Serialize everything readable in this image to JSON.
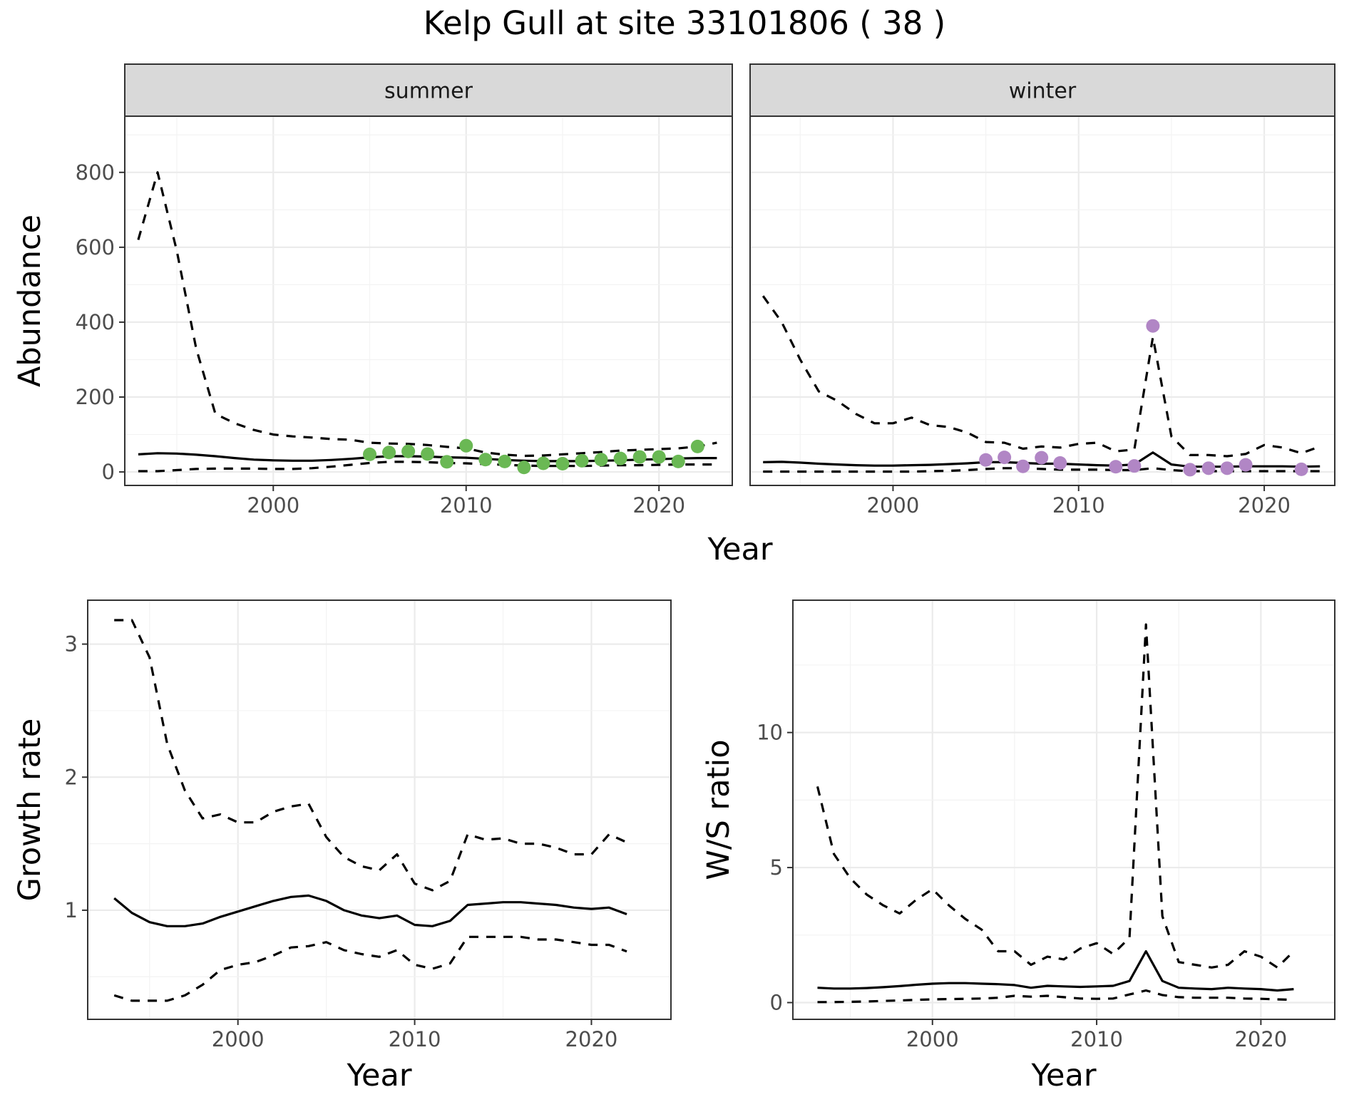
{
  "title": "Kelp Gull at site 33101806 ( 38 )",
  "chart_data": [
    {
      "type": "line",
      "panel": "summer",
      "strip": "summer",
      "ylabel": "Abundance",
      "xlabel": "",
      "xlim": [
        1992.3,
        2023.8
      ],
      "ylim": [
        -36,
        950
      ],
      "x_ticks": [
        "2000",
        "2010",
        "2020"
      ],
      "y_ticks": [
        "0",
        "200",
        "400",
        "600",
        "800"
      ],
      "x": [
        1993,
        1994,
        1995,
        1996,
        1997,
        1998,
        1999,
        2000,
        2001,
        2002,
        2003,
        2004,
        2005,
        2006,
        2007,
        2008,
        2009,
        2010,
        2011,
        2012,
        2013,
        2014,
        2015,
        2016,
        2017,
        2018,
        2019,
        2020,
        2021,
        2022,
        2023
      ],
      "series": [
        {
          "role": "estimate",
          "values": [
            47,
            50,
            49,
            46,
            42,
            37,
            33,
            31,
            30,
            30,
            32,
            35,
            39,
            42,
            42,
            41,
            39,
            38,
            35,
            32,
            30,
            29,
            29,
            29,
            30,
            31,
            33,
            34,
            36,
            37,
            37
          ]
        },
        {
          "role": "upper",
          "values": [
            620,
            800,
            590,
            330,
            155,
            130,
            112,
            100,
            95,
            92,
            88,
            86,
            78,
            76,
            75,
            72,
            67,
            63,
            52,
            46,
            43,
            44,
            47,
            50,
            53,
            57,
            59,
            61,
            63,
            68,
            78
          ]
        },
        {
          "role": "lower",
          "values": [
            2,
            2,
            5,
            8,
            9,
            9,
            9,
            8,
            8,
            10,
            14,
            19,
            24,
            27,
            27,
            26,
            24,
            23,
            21,
            19,
            17,
            16,
            16,
            16,
            17,
            18,
            18,
            19,
            20,
            20,
            20
          ]
        }
      ],
      "points": {
        "color": "#6ab854",
        "x": [
          2005,
          2006,
          2007,
          2008,
          2009,
          2010,
          2011,
          2012,
          2013,
          2014,
          2015,
          2016,
          2017,
          2018,
          2019,
          2020,
          2021,
          2022
        ],
        "y": [
          47,
          52,
          55,
          48,
          27,
          70,
          33,
          28,
          12,
          23,
          22,
          30,
          33,
          36,
          40,
          40,
          28,
          68
        ]
      }
    },
    {
      "type": "line",
      "panel": "winter",
      "strip": "winter",
      "ylabel": "",
      "xlabel": "",
      "xlim": [
        1992.3,
        2023.8
      ],
      "ylim": [
        -36,
        950
      ],
      "x_ticks": [
        "2000",
        "2010",
        "2020"
      ],
      "y_ticks": [],
      "x": [
        1993,
        1994,
        1995,
        1996,
        1997,
        1998,
        1999,
        2000,
        2001,
        2002,
        2003,
        2004,
        2005,
        2006,
        2007,
        2008,
        2009,
        2010,
        2011,
        2012,
        2013,
        2014,
        2015,
        2016,
        2017,
        2018,
        2019,
        2020,
        2021,
        2022,
        2023
      ],
      "series": [
        {
          "role": "estimate",
          "values": [
            26,
            27,
            25,
            22,
            20,
            18,
            17,
            17,
            18,
            19,
            21,
            23,
            26,
            26,
            24,
            22,
            22,
            20,
            18,
            17,
            20,
            52,
            20,
            14,
            14,
            14,
            15,
            15,
            15,
            14,
            15
          ]
        },
        {
          "role": "upper",
          "values": [
            470,
            400,
            300,
            215,
            190,
            155,
            130,
            130,
            145,
            125,
            120,
            105,
            80,
            78,
            62,
            68,
            65,
            75,
            78,
            55,
            60,
            360,
            95,
            45,
            45,
            42,
            48,
            72,
            65,
            50,
            68
          ]
        },
        {
          "role": "lower",
          "values": [
            1,
            1,
            1,
            1,
            1,
            1,
            1,
            1,
            1,
            2,
            3,
            5,
            8,
            10,
            10,
            8,
            6,
            6,
            6,
            5,
            5,
            10,
            5,
            2,
            2,
            2,
            2,
            2,
            2,
            2,
            2
          ]
        }
      ],
      "points": {
        "color": "#b186c5",
        "x": [
          2005,
          2006,
          2007,
          2008,
          2009,
          2012,
          2013,
          2014,
          2016,
          2017,
          2018,
          2019,
          2022
        ],
        "y": [
          32,
          39,
          15,
          38,
          24,
          14,
          16,
          390,
          6,
          10,
          10,
          19,
          7
        ]
      }
    },
    {
      "type": "line",
      "panel": "growth",
      "strip": "",
      "ylabel": "Growth rate",
      "xlabel": "Year",
      "xlim": [
        1991.5,
        2024.5
      ],
      "ylim": [
        0.18,
        3.33
      ],
      "x_ticks": [
        "2000",
        "2010",
        "2020"
      ],
      "y_ticks": [
        "1",
        "2",
        "3"
      ],
      "x": [
        1993,
        1994,
        1995,
        1996,
        1997,
        1998,
        1999,
        2000,
        2001,
        2002,
        2003,
        2004,
        2005,
        2006,
        2007,
        2008,
        2009,
        2010,
        2011,
        2012,
        2013,
        2014,
        2015,
        2016,
        2017,
        2018,
        2019,
        2020,
        2021,
        2022
      ],
      "series": [
        {
          "role": "estimate",
          "values": [
            1.09,
            0.98,
            0.91,
            0.88,
            0.88,
            0.9,
            0.95,
            0.99,
            1.03,
            1.07,
            1.1,
            1.11,
            1.07,
            1.0,
            0.96,
            0.94,
            0.96,
            0.89,
            0.88,
            0.92,
            1.04,
            1.05,
            1.06,
            1.06,
            1.05,
            1.04,
            1.02,
            1.01,
            1.02,
            0.97
          ]
        },
        {
          "role": "upper",
          "values": [
            3.18,
            3.18,
            2.9,
            2.25,
            1.9,
            1.69,
            1.72,
            1.66,
            1.66,
            1.74,
            1.78,
            1.8,
            1.55,
            1.4,
            1.33,
            1.3,
            1.42,
            1.2,
            1.15,
            1.22,
            1.57,
            1.53,
            1.54,
            1.5,
            1.5,
            1.47,
            1.42,
            1.42,
            1.57,
            1.51
          ]
        },
        {
          "role": "lower",
          "values": [
            0.36,
            0.32,
            0.32,
            0.32,
            0.36,
            0.44,
            0.55,
            0.59,
            0.61,
            0.66,
            0.72,
            0.73,
            0.76,
            0.7,
            0.67,
            0.65,
            0.7,
            0.59,
            0.56,
            0.6,
            0.8,
            0.8,
            0.8,
            0.8,
            0.78,
            0.78,
            0.76,
            0.74,
            0.74,
            0.69
          ]
        }
      ]
    },
    {
      "type": "line",
      "panel": "ratio",
      "strip": "",
      "ylabel": "W/S ratio",
      "xlabel": "Year",
      "xlim": [
        1991.5,
        2024.5
      ],
      "ylim": [
        -0.62,
        14.9
      ],
      "x_ticks": [
        "2000",
        "2010",
        "2020"
      ],
      "y_ticks": [
        "0",
        "5",
        "10"
      ],
      "x": [
        1993,
        1994,
        1995,
        1996,
        1997,
        1998,
        1999,
        2000,
        2001,
        2002,
        2003,
        2004,
        2005,
        2006,
        2007,
        2008,
        2009,
        2010,
        2011,
        2012,
        2013,
        2014,
        2015,
        2016,
        2017,
        2018,
        2019,
        2020,
        2021,
        2022
      ],
      "series": [
        {
          "role": "estimate",
          "values": [
            0.55,
            0.52,
            0.52,
            0.54,
            0.57,
            0.61,
            0.66,
            0.7,
            0.72,
            0.72,
            0.7,
            0.68,
            0.65,
            0.55,
            0.62,
            0.6,
            0.58,
            0.6,
            0.62,
            0.8,
            1.9,
            0.8,
            0.55,
            0.52,
            0.5,
            0.55,
            0.52,
            0.5,
            0.45,
            0.5
          ]
        },
        {
          "role": "upper",
          "values": [
            8.0,
            5.5,
            4.6,
            4.0,
            3.6,
            3.3,
            3.8,
            4.2,
            3.6,
            3.1,
            2.7,
            1.9,
            1.9,
            1.4,
            1.7,
            1.6,
            2.0,
            2.2,
            1.8,
            2.4,
            14.0,
            3.2,
            1.5,
            1.4,
            1.3,
            1.4,
            1.9,
            1.7,
            1.3,
            1.9
          ]
        },
        {
          "role": "lower",
          "values": [
            0.02,
            0.02,
            0.03,
            0.04,
            0.06,
            0.08,
            0.1,
            0.12,
            0.13,
            0.14,
            0.15,
            0.18,
            0.25,
            0.22,
            0.25,
            0.2,
            0.15,
            0.14,
            0.15,
            0.3,
            0.45,
            0.28,
            0.2,
            0.18,
            0.18,
            0.18,
            0.15,
            0.14,
            0.12,
            0.1
          ]
        }
      ]
    }
  ]
}
